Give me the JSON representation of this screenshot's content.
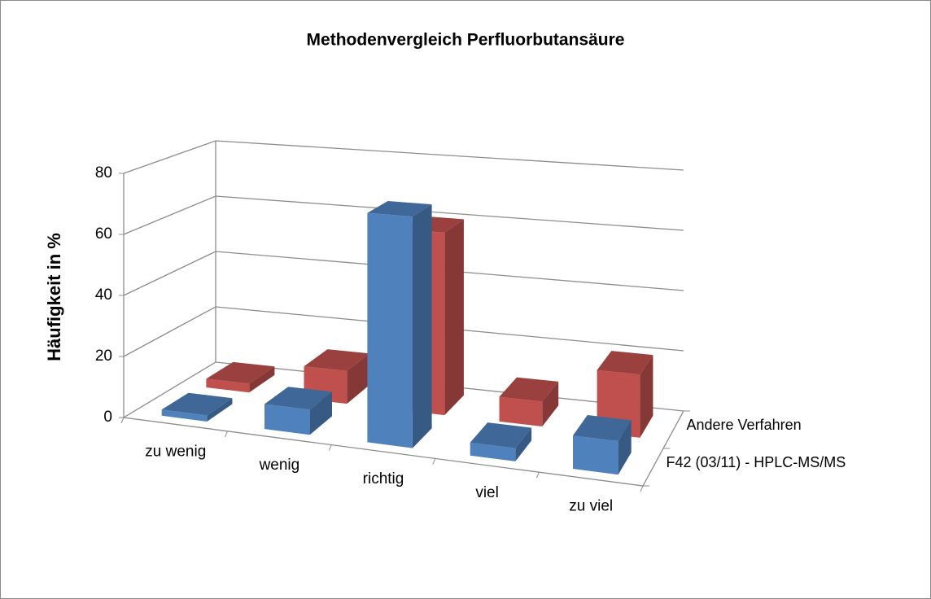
{
  "chart_data": {
    "type": "bar3d",
    "title": "Methodenvergleich Perfluorbutansäure",
    "y_label": "Häufigkeit in %",
    "categories": [
      "zu wenig",
      "wenig",
      "richtig",
      "viel",
      "zu viel"
    ],
    "series": [
      {
        "name": "F42 (03/11) - HPLC-MS/MS",
        "color": "#4f81bd",
        "values": [
          2,
          8,
          72,
          4,
          10
        ]
      },
      {
        "name": "Andere Verfahren",
        "color": "#c0504d",
        "values": [
          3,
          11,
          60,
          8,
          20
        ]
      }
    ],
    "ylim": [
      0,
      80
    ],
    "yticks": [
      0,
      20,
      40,
      60,
      80
    ],
    "grid": true
  }
}
